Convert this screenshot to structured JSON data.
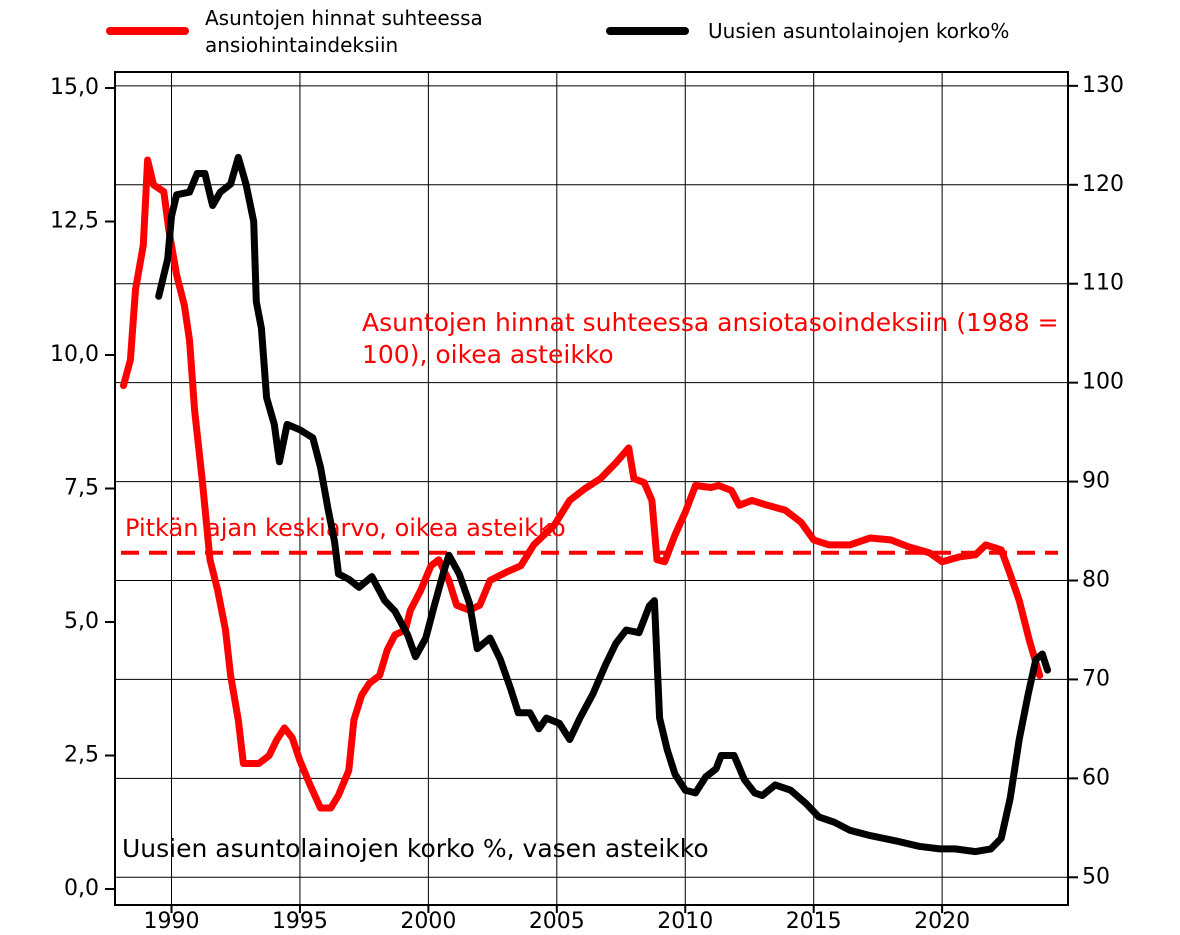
{
  "chart_data": {
    "type": "line",
    "series": [
      {
        "name": "Asuntojen hinnat suhteessa ansiohintaindeksiin",
        "color": "#ff0000",
        "axis": "y2",
        "x": [
          1988.13,
          1988.4,
          1988.6,
          1988.9,
          1989.07,
          1989.3,
          1989.7,
          1989.9,
          1990.2,
          1990.5,
          1990.7,
          1990.9,
          1991.2,
          1991.5,
          1991.8,
          1992.1,
          1992.3,
          1992.6,
          1992.8,
          1993.4,
          1993.8,
          1994.1,
          1994.4,
          1994.7,
          1995.0,
          1995.4,
          1995.8,
          1996.2,
          1996.5,
          1996.9,
          1997.1,
          1997.4,
          1997.7,
          1998.1,
          1998.4,
          1998.7,
          1999.1,
          1999.3,
          1999.7,
          2000.1,
          2000.4,
          2000.8,
          2001.1,
          2001.6,
          2002.0,
          2002.4,
          2003.0,
          2003.6,
          2004.1,
          2004.9,
          2005.5,
          2006.1,
          2006.7,
          2007.3,
          2007.8,
          2008.0,
          2008.4,
          2008.7,
          2008.9,
          2009.2,
          2009.6,
          2010.0,
          2010.4,
          2011.0,
          2011.3,
          2011.8,
          2012.1,
          2012.6,
          2013.2,
          2013.9,
          2014.5,
          2015.0,
          2015.6,
          2016.4,
          2017.2,
          2018.0,
          2018.7,
          2019.5,
          2020.0,
          2020.7,
          2021.3,
          2021.7,
          2022.3,
          2022.6,
          2023.0,
          2023.4,
          2023.8
        ],
        "values": [
          99.7,
          102.3,
          109.4,
          113.9,
          122.5,
          120,
          119.3,
          115.4,
          110.9,
          107.8,
          104.3,
          97.2,
          90.1,
          82.1,
          79.0,
          75.0,
          70.4,
          65.9,
          61.5,
          61.5,
          62.3,
          63.9,
          65.1,
          64.1,
          61.8,
          59.3,
          57.0,
          57.0,
          58.3,
          60.8,
          65.9,
          68.4,
          69.6,
          70.4,
          73.0,
          74.5,
          75.0,
          77.0,
          79.0,
          81.5,
          82.1,
          80.0,
          77.5,
          77.0,
          77.5,
          80.0,
          80.8,
          81.5,
          83.6,
          85.6,
          88.1,
          89.3,
          90.3,
          91.9,
          93.4,
          90.3,
          89.9,
          88.1,
          82.1,
          81.9,
          84.6,
          86.9,
          89.6,
          89.4,
          89.6,
          89.1,
          87.6,
          88.1,
          87.6,
          87.1,
          85.9,
          84.1,
          83.6,
          83.6,
          84.3,
          84.1,
          83.4,
          82.8,
          81.9,
          82.4,
          82.6,
          83.6,
          83.1,
          81.0,
          78.0,
          73.9,
          70.4
        ]
      },
      {
        "name": "Uusien asuntolainojen korko%",
        "color": "#000000",
        "x": [
          1989.5,
          1989.85,
          1990.0,
          1990.2,
          1990.7,
          1991.0,
          1991.3,
          1991.6,
          1991.9,
          1992.3,
          1992.6,
          1992.9,
          1993.2,
          1993.3,
          1993.5,
          1993.7,
          1994.0,
          1994.2,
          1994.5,
          1995.0,
          1995.5,
          1995.8,
          1996.1,
          1996.35,
          1996.5,
          1996.9,
          1997.3,
          1997.8,
          1998.3,
          1998.7,
          1999.2,
          1999.5,
          1999.9,
          2000.2,
          2000.6,
          2000.8,
          2001.2,
          2001.6,
          2001.9,
          2002.4,
          2002.8,
          2003.2,
          2003.5,
          2003.95,
          2004.3,
          2004.6,
          2005.1,
          2005.5,
          2005.9,
          2006.4,
          2006.9,
          2007.3,
          2007.7,
          2008.2,
          2008.6,
          2008.8,
          2009.0,
          2009.3,
          2009.6,
          2010.0,
          2010.4,
          2010.8,
          2011.2,
          2011.4,
          2011.9,
          2012.3,
          2012.7,
          2013.0,
          2013.5,
          2014.1,
          2014.7,
          2015.2,
          2015.8,
          2016.4,
          2017.2,
          2018.2,
          2019.1,
          2019.9,
          2020.5,
          2021.3,
          2021.9,
          2022.3,
          2022.65,
          2023.0,
          2023.35,
          2023.65,
          2023.9,
          2024.1
        ],
        "values": [
          11.1,
          11.8,
          12.6,
          13.0,
          13.05,
          13.4,
          13.4,
          12.8,
          13.05,
          13.2,
          13.7,
          13.2,
          12.5,
          11.0,
          10.5,
          9.2,
          8.7,
          8.0,
          8.7,
          8.6,
          8.45,
          7.9,
          7.1,
          6.5,
          5.9,
          5.8,
          5.65,
          5.85,
          5.4,
          5.2,
          4.75,
          4.35,
          4.7,
          5.25,
          5.95,
          6.25,
          5.9,
          5.35,
          4.5,
          4.7,
          4.3,
          3.75,
          3.3,
          3.3,
          3.0,
          3.2,
          3.1,
          2.8,
          3.2,
          3.65,
          4.2,
          4.6,
          4.85,
          4.8,
          5.3,
          5.4,
          3.2,
          2.6,
          2.15,
          1.85,
          1.8,
          2.1,
          2.25,
          2.5,
          2.5,
          2.05,
          1.8,
          1.75,
          1.95,
          1.85,
          1.6,
          1.35,
          1.25,
          1.1,
          1.0,
          0.9,
          0.8,
          0.75,
          0.75,
          0.7,
          0.75,
          0.95,
          1.7,
          2.8,
          3.65,
          4.3,
          4.4,
          4.1
        ]
      }
    ],
    "xlim": [
      1987.8,
      2024.9
    ],
    "xticks": [
      1990,
      1995,
      2000,
      2005,
      2010,
      2015,
      2020
    ],
    "ylim": [
      -0.3,
      15.3
    ],
    "yticks": [
      {
        "value": 0,
        "label": "0,0"
      },
      {
        "value": 2.5,
        "label": "2,5"
      },
      {
        "value": 5,
        "label": "5,0"
      },
      {
        "value": 7.5,
        "label": "7,5"
      },
      {
        "value": 10,
        "label": "10,0"
      },
      {
        "value": 12.5,
        "label": "12,5"
      },
      {
        "value": 15,
        "label": "15,0"
      }
    ],
    "y2lim": [
      47.2,
      131.4
    ],
    "y2ticks": [
      50,
      60,
      70,
      80,
      90,
      100,
      110,
      120,
      130
    ],
    "grid": true,
    "average": {
      "label": "Pitkän ajan keskiarvo, oikea asteikko",
      "value": 82.8,
      "axis": "y2",
      "color": "#ff0000"
    },
    "annotations": [
      {
        "text": "Asuntojen hinnat suhteessa ansiotasoindeksiin (1988 = 100), oikea asteikko",
        "color": "#ff0000"
      },
      {
        "text": "Uusien asuntolainojen korko %, vasen asteikko",
        "color": "#000000"
      }
    ]
  }
}
